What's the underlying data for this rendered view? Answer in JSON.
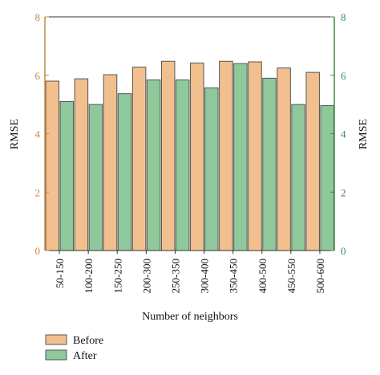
{
  "chart_data": {
    "type": "bar",
    "categories": [
      "50-150",
      "100-200",
      "150-250",
      "200-300",
      "250-350",
      "300-400",
      "350-450",
      "400-500",
      "450-550",
      "500-600"
    ],
    "series": [
      {
        "name": "Before",
        "values": [
          5.8,
          5.88,
          6.02,
          6.28,
          6.48,
          6.42,
          6.48,
          6.46,
          6.25,
          6.1
        ],
        "color": "#f2c08e"
      },
      {
        "name": "After",
        "values": [
          5.1,
          5.0,
          5.37,
          5.84,
          5.84,
          5.57,
          6.4,
          5.9,
          5.0,
          4.96
        ],
        "color": "#8fc89a"
      }
    ],
    "xlabel": "Number of neighbors",
    "ylabel_left": "RMSE",
    "ylabel_right": "RMSE",
    "ylim": [
      0,
      8
    ],
    "yticks": [
      0,
      2,
      4,
      6,
      8
    ],
    "left_axis_color": "#c48a44",
    "right_axis_color": "#3f8a4a",
    "bar_edge_color": "#555555",
    "grid": false,
    "legend_position": "bottom-left"
  }
}
